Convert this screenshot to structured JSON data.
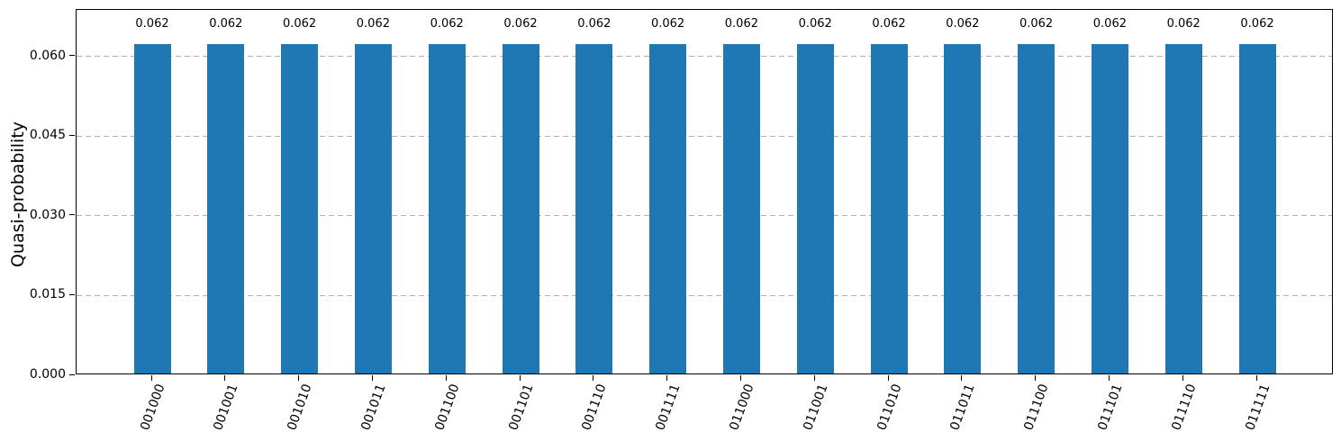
{
  "chart_data": {
    "type": "bar",
    "title": "",
    "xlabel": "",
    "ylabel": "Quasi-probability",
    "categories": [
      "001000",
      "001001",
      "001010",
      "001011",
      "001100",
      "001101",
      "001110",
      "001111",
      "011000",
      "011001",
      "011010",
      "011011",
      "011100",
      "011101",
      "011110",
      "011111"
    ],
    "values": [
      0.062,
      0.062,
      0.062,
      0.062,
      0.062,
      0.062,
      0.062,
      0.062,
      0.062,
      0.062,
      0.062,
      0.062,
      0.062,
      0.062,
      0.062,
      0.062
    ],
    "bar_labels": [
      "0.062",
      "0.062",
      "0.062",
      "0.062",
      "0.062",
      "0.062",
      "0.062",
      "0.062",
      "0.062",
      "0.062",
      "0.062",
      "0.062",
      "0.062",
      "0.062",
      "0.062",
      "0.062"
    ],
    "ytick_values": [
      0.0,
      0.015,
      0.03,
      0.045,
      0.06
    ],
    "ytick_labels": [
      "0.000",
      "0.015",
      "0.030",
      "0.045",
      "0.060"
    ],
    "ylim": [
      0,
      0.0688
    ],
    "xtick_rotation_deg": 70,
    "grid": {
      "axis": "y",
      "style": "dashed",
      "color": "#b0b0b0"
    },
    "bar_color": "#1f77b4",
    "axis_color": "#000000",
    "legend": null
  }
}
